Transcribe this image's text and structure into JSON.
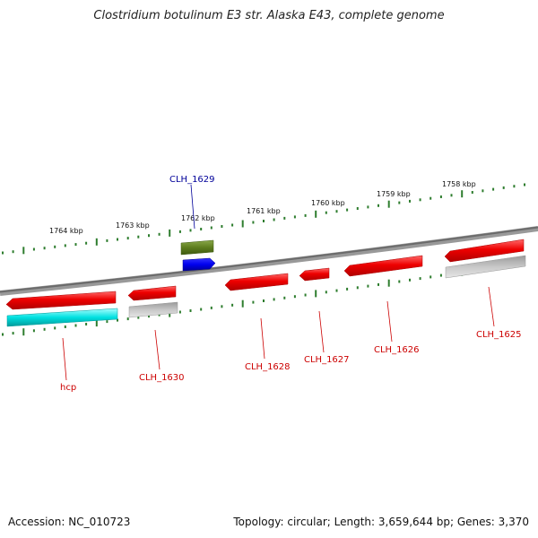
{
  "title": "Clostridium botulinum E3 str. Alaska E43, complete genome",
  "accession": "Accession: NC_010723",
  "summary": "Topology: circular; Length: 3,659,644 bp; Genes: 3,370",
  "colors": {
    "backbone": "#7a7a7a",
    "tick": "#2e7d2e",
    "cds": "#ee0000",
    "cds_alt": "#00dddd",
    "gray_feature": "#b4b4b4",
    "green_feature": "#5e7d1e",
    "blue_feature": "#0000ee",
    "label_red": "#cc0000",
    "label_blue": "#000099"
  },
  "scale": {
    "tick_labels": [
      "1764 kbp",
      "1763 kbp",
      "1762 kbp",
      "1761 kbp",
      "1760 kbp",
      "1759 kbp",
      "1758 kbp"
    ]
  },
  "genes": [
    {
      "name": "hcp",
      "color": "label_red"
    },
    {
      "name": "CLH_1630",
      "color": "label_red"
    },
    {
      "name": "CLH_1629",
      "color": "label_blue"
    },
    {
      "name": "CLH_1628",
      "color": "label_red"
    },
    {
      "name": "CLH_1627",
      "color": "label_red"
    },
    {
      "name": "CLH_1626",
      "color": "label_red"
    },
    {
      "name": "CLH_1625",
      "color": "label_red"
    }
  ]
}
